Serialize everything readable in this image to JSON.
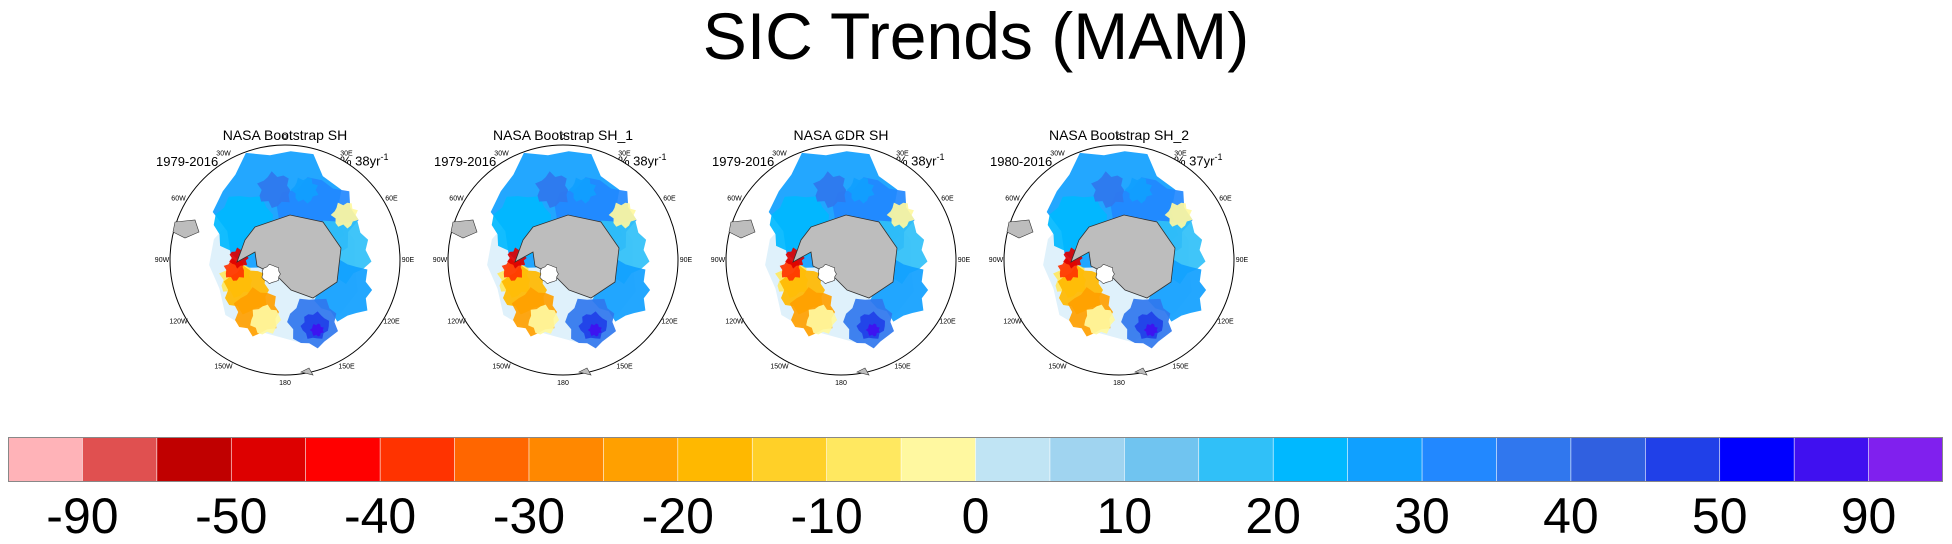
{
  "title": "SIC Trends (MAM)",
  "panels": [
    {
      "title": "NASA Bootstrap SH",
      "period": "1979-2016",
      "unit": "% 38yr",
      "unit_exp": "-1"
    },
    {
      "title": "NASA Bootstrap SH_1",
      "period": "1979-2016",
      "unit": "% 38yr",
      "unit_exp": "-1"
    },
    {
      "title": "NASA CDR SH",
      "period": "1979-2016",
      "unit": "% 38yr",
      "unit_exp": "-1"
    },
    {
      "title": "NASA Bootstrap SH_2",
      "period": "1980-2016",
      "unit": "% 37yr",
      "unit_exp": "-1"
    }
  ],
  "longitude_labels": [
    "0",
    "30E",
    "60E",
    "90E",
    "120E",
    "150E",
    "180",
    "150W",
    "120W",
    "90W",
    "60W",
    "30W"
  ],
  "colors": {
    "land": "#bdbdbd",
    "land_outline": "#333333",
    "map_frame": "#000000",
    "near_zero": "#dff1fb"
  },
  "colorbar": {
    "colors": [
      "#ffb3b8",
      "#e05050",
      "#c00000",
      "#dd0000",
      "#ff0000",
      "#ff3300",
      "#ff6600",
      "#ff8800",
      "#ffa000",
      "#ffb800",
      "#ffd028",
      "#ffe860",
      "#fff8a0",
      "#c0e4f4",
      "#a0d4f0",
      "#70c4f0",
      "#30c0f8",
      "#00b8ff",
      "#10a0ff",
      "#2288ff",
      "#3077ee",
      "#3060e0",
      "#2040e8",
      "#0000ff",
      "#4010f0",
      "#8020ee"
    ],
    "labels": [
      "-90",
      "-50",
      "-40",
      "-30",
      "-20",
      "-10",
      "0",
      "10",
      "20",
      "30",
      "40",
      "50",
      "90"
    ]
  }
}
